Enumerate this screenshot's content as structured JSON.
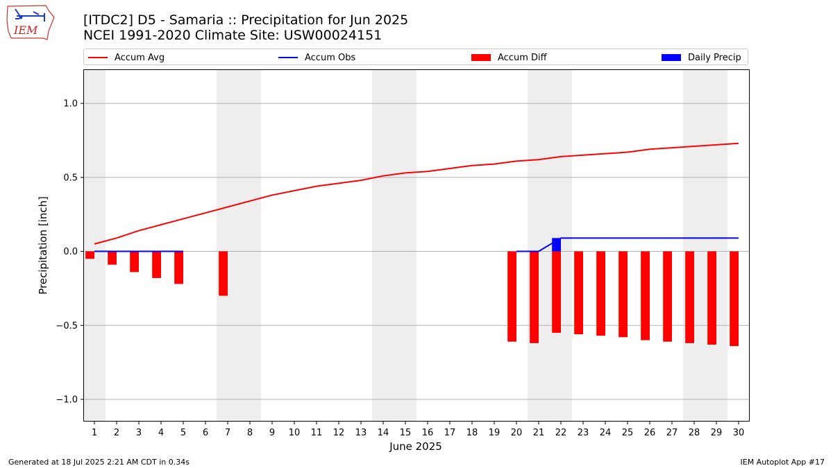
{
  "header": {
    "title_line1": "[ITDC2] D5 - Samaria  :: Precipitation for Jun 2025",
    "title_line2": "NCEI 1991-2020 Climate Site: USW00024151",
    "logo_text": "IEM"
  },
  "footer": {
    "generated": "Generated at 18 Jul 2025 2:21 AM CDT in 0.34s",
    "app": "IEM Autoplot App #17"
  },
  "colors": {
    "accum_avg": "#ff0000",
    "accum_obs": "#0000ff",
    "accum_diff": "#ff0000",
    "daily_precip": "#0000ff",
    "weekend_shade": "#eeeeee",
    "grid": "#b0b0b0"
  },
  "chart_data": {
    "type": "bar",
    "xlabel": "June 2025",
    "ylabel": "Precipitation [inch]",
    "xlim": [
      0.5,
      30.5
    ],
    "ylim": [
      -1.15,
      1.23
    ],
    "x": [
      1,
      2,
      3,
      4,
      5,
      6,
      7,
      8,
      9,
      10,
      11,
      12,
      13,
      14,
      15,
      16,
      17,
      18,
      19,
      20,
      21,
      22,
      23,
      24,
      25,
      26,
      27,
      28,
      29,
      30
    ],
    "x_tick_labels": [
      "1",
      "2",
      "3",
      "4",
      "5",
      "6",
      "7",
      "8",
      "9",
      "10",
      "11",
      "12",
      "13",
      "14",
      "15",
      "16",
      "17",
      "18",
      "19",
      "20",
      "21",
      "22",
      "23",
      "24",
      "25",
      "26",
      "27",
      "28",
      "29",
      "30"
    ],
    "y_ticks": [
      -1.0,
      -0.5,
      0.0,
      0.5,
      1.0
    ],
    "y_tick_labels": [
      "−1.0",
      "−0.5",
      "0.0",
      "0.5",
      "1.0"
    ],
    "grid": "horizontal",
    "legend_position": "top",
    "legend": [
      "Accum Avg",
      "Accum Obs",
      "Accum Diff",
      "Daily Precip"
    ],
    "shaded_days": [
      1,
      7,
      8,
      14,
      15,
      21,
      22,
      28,
      29
    ],
    "accum_avg": [
      0.05,
      0.09,
      0.14,
      0.18,
      0.22,
      0.26,
      0.3,
      0.34,
      0.38,
      0.41,
      0.44,
      0.46,
      0.48,
      0.51,
      0.53,
      0.54,
      0.56,
      0.58,
      0.59,
      0.61,
      0.62,
      0.64,
      0.65,
      0.66,
      0.67,
      0.69,
      0.7,
      0.71,
      0.72,
      0.73
    ],
    "accum_obs": [
      {
        "x": [
          1,
          2,
          3,
          4,
          5
        ],
        "values": [
          0,
          0,
          0,
          0,
          0
        ]
      },
      {
        "x": [
          20,
          21,
          22,
          23,
          24,
          25,
          26,
          27,
          28,
          29,
          30
        ],
        "values": [
          0,
          0,
          0.09,
          0.09,
          0.09,
          0.09,
          0.09,
          0.09,
          0.09,
          0.09,
          0.09
        ]
      }
    ],
    "accum_diff": {
      "x": [
        1,
        2,
        3,
        4,
        5,
        7,
        20,
        21,
        22,
        23,
        24,
        25,
        26,
        27,
        28,
        29,
        30
      ],
      "values": [
        -0.05,
        -0.09,
        -0.14,
        -0.18,
        -0.22,
        -0.3,
        -0.61,
        -0.62,
        -0.55,
        -0.56,
        -0.57,
        -0.58,
        -0.6,
        -0.61,
        -0.62,
        -0.63,
        -0.64
      ]
    },
    "daily_precip": {
      "x": [
        22
      ],
      "values": [
        0.09
      ]
    }
  }
}
